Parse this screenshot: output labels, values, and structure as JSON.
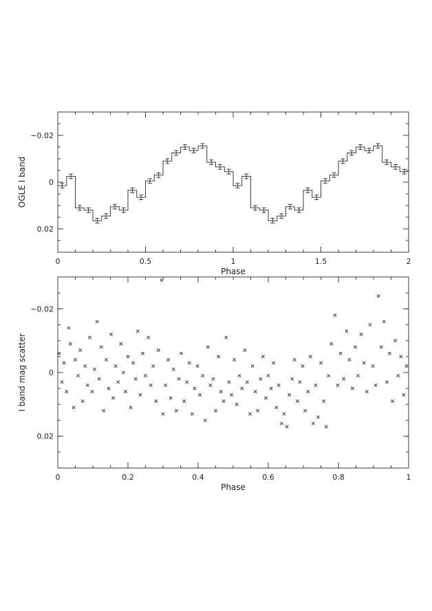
{
  "chart_data": [
    {
      "type": "line",
      "style": "binned step curve with error bars, two cycles",
      "title": "",
      "xlabel": "Phase",
      "ylabel": "OGLE I band",
      "xlim": [
        0,
        2
      ],
      "ylim": [
        0.03,
        -0.03
      ],
      "y_inverted": true,
      "xticks": [
        0,
        0.5,
        1,
        1.5,
        2
      ],
      "xtick_labels": [
        "0",
        "0.5",
        "1",
        "1.5",
        "2"
      ],
      "yticks": [
        -0.02,
        0,
        0.02
      ],
      "ytick_labels": [
        "−0.02",
        "0",
        "0.02"
      ],
      "bin_width": 0.05,
      "bin_start": [
        0,
        0.05,
        0.1,
        0.15,
        0.2,
        0.25,
        0.3,
        0.35,
        0.4,
        0.45,
        0.5,
        0.55,
        0.6,
        0.65,
        0.7,
        0.75,
        0.8,
        0.85,
        0.9,
        0.95
      ],
      "values": [
        0.0015,
        -0.0025,
        0.011,
        0.012,
        0.0165,
        0.0145,
        0.0105,
        0.012,
        0.0035,
        0.0065,
        -0.0005,
        -0.003,
        -0.009,
        -0.0125,
        -0.015,
        -0.0135,
        -0.0155,
        -0.0085,
        -0.0065,
        -0.0045
      ],
      "errors": [
        0.001,
        0.001,
        0.001,
        0.001,
        0.001,
        0.001,
        0.001,
        0.001,
        0.001,
        0.001,
        0.001,
        0.001,
        0.001,
        0.001,
        0.001,
        0.001,
        0.001,
        0.001,
        0.001,
        0.001
      ],
      "cycles": 2,
      "grid": false,
      "legend": "none"
    },
    {
      "type": "scatter",
      "marker": "x",
      "title": "",
      "xlabel": "Phase",
      "ylabel": "I band mag scatter",
      "xlim": [
        0,
        1
      ],
      "ylim": [
        0.03,
        -0.03
      ],
      "y_inverted": true,
      "xticks": [
        0,
        0.2,
        0.4,
        0.6,
        0.8,
        1
      ],
      "xtick_labels": [
        "0",
        "0.2",
        "0.4",
        "0.6",
        "0.8",
        "1"
      ],
      "yticks": [
        -0.02,
        0,
        0.02
      ],
      "ytick_labels": [
        "−0.02",
        "0",
        "0.02"
      ],
      "points": [
        [
          0.004,
          -0.006
        ],
        [
          0.012,
          0.003
        ],
        [
          0.018,
          -0.003
        ],
        [
          0.025,
          0.006
        ],
        [
          0.031,
          -0.014
        ],
        [
          0.036,
          -0.009
        ],
        [
          0.045,
          0.011
        ],
        [
          0.05,
          -0.004
        ],
        [
          0.058,
          0.001
        ],
        [
          0.064,
          -0.007
        ],
        [
          0.071,
          0.009
        ],
        [
          0.078,
          -0.002
        ],
        [
          0.085,
          0.004
        ],
        [
          0.091,
          -0.011
        ],
        [
          0.098,
          0.006
        ],
        [
          0.105,
          -0.001
        ],
        [
          0.112,
          -0.016
        ],
        [
          0.118,
          0.002
        ],
        [
          0.124,
          -0.008
        ],
        [
          0.131,
          0.012
        ],
        [
          0.138,
          -0.004
        ],
        [
          0.145,
          0.005
        ],
        [
          0.152,
          -0.012
        ],
        [
          0.158,
          0.008
        ],
        [
          0.165,
          -0.002
        ],
        [
          0.172,
          0.003
        ],
        [
          0.18,
          -0.009
        ],
        [
          0.187,
          0.0
        ],
        [
          0.193,
          0.006
        ],
        [
          0.2,
          -0.005
        ],
        [
          0.208,
          0.011
        ],
        [
          0.215,
          -0.003
        ],
        [
          0.222,
          0.002
        ],
        [
          0.228,
          -0.013
        ],
        [
          0.235,
          0.007
        ],
        [
          0.242,
          -0.006
        ],
        [
          0.25,
          0.001
        ],
        [
          0.258,
          -0.011
        ],
        [
          0.265,
          0.004
        ],
        [
          0.272,
          -0.002
        ],
        [
          0.28,
          0.009
        ],
        [
          0.287,
          -0.007
        ],
        [
          0.296,
          -0.029
        ],
        [
          0.3,
          0.013
        ],
        [
          0.307,
          0.004
        ],
        [
          0.315,
          -0.004
        ],
        [
          0.322,
          0.008
        ],
        [
          0.33,
          -0.001
        ],
        [
          0.338,
          0.012
        ],
        [
          0.345,
          0.002
        ],
        [
          0.352,
          -0.006
        ],
        [
          0.36,
          0.009
        ],
        [
          0.368,
          0.003
        ],
        [
          0.375,
          -0.003
        ],
        [
          0.383,
          0.013
        ],
        [
          0.39,
          0.005
        ],
        [
          0.398,
          -0.002
        ],
        [
          0.405,
          0.007
        ],
        [
          0.413,
          0.001
        ],
        [
          0.42,
          0.015
        ],
        [
          0.428,
          -0.008
        ],
        [
          0.435,
          0.004
        ],
        [
          0.443,
          0.002
        ],
        [
          0.45,
          0.012
        ],
        [
          0.458,
          -0.005
        ],
        [
          0.465,
          0.006
        ],
        [
          0.473,
          0.009
        ],
        [
          0.48,
          -0.011
        ],
        [
          0.488,
          0.003
        ],
        [
          0.495,
          0.007
        ],
        [
          0.503,
          -0.004
        ],
        [
          0.51,
          0.01
        ],
        [
          0.518,
          0.001
        ],
        [
          0.525,
          0.005
        ],
        [
          0.533,
          -0.007
        ],
        [
          0.54,
          0.003
        ],
        [
          0.548,
          0.013
        ],
        [
          0.555,
          -0.002
        ],
        [
          0.563,
          0.006
        ],
        [
          0.57,
          0.012
        ],
        [
          0.578,
          0.002
        ],
        [
          0.585,
          -0.005
        ],
        [
          0.593,
          0.008
        ],
        [
          0.6,
          0.001
        ],
        [
          0.608,
          0.005
        ],
        [
          0.615,
          -0.003
        ],
        [
          0.623,
          0.011
        ],
        [
          0.63,
          0.004
        ],
        [
          0.638,
          0.016
        ],
        [
          0.645,
          0.013
        ],
        [
          0.653,
          0.017
        ],
        [
          0.66,
          0.007
        ],
        [
          0.668,
          0.002
        ],
        [
          0.675,
          -0.004
        ],
        [
          0.683,
          0.009
        ],
        [
          0.69,
          0.003
        ],
        [
          0.698,
          -0.002
        ],
        [
          0.705,
          0.012
        ],
        [
          0.713,
          0.006
        ],
        [
          0.72,
          -0.005
        ],
        [
          0.728,
          0.016
        ],
        [
          0.735,
          0.004
        ],
        [
          0.742,
          0.014
        ],
        [
          0.75,
          -0.003
        ],
        [
          0.758,
          0.009
        ],
        [
          0.765,
          0.017
        ],
        [
          0.772,
          0.001
        ],
        [
          0.78,
          -0.009
        ],
        [
          0.79,
          -0.018
        ],
        [
          0.798,
          0.004
        ],
        [
          0.806,
          -0.006
        ],
        [
          0.815,
          0.002
        ],
        [
          0.823,
          -0.013
        ],
        [
          0.831,
          -0.004
        ],
        [
          0.84,
          0.005
        ],
        [
          0.848,
          -0.008
        ],
        [
          0.856,
          0.001
        ],
        [
          0.865,
          -0.012
        ],
        [
          0.873,
          -0.003
        ],
        [
          0.881,
          0.006
        ],
        [
          0.89,
          -0.015
        ],
        [
          0.898,
          -0.002
        ],
        [
          0.906,
          0.004
        ],
        [
          0.914,
          -0.024
        ],
        [
          0.922,
          -0.008
        ],
        [
          0.93,
          -0.016
        ],
        [
          0.938,
          0.003
        ],
        [
          0.946,
          -0.006
        ],
        [
          0.954,
          0.009
        ],
        [
          0.962,
          -0.01
        ],
        [
          0.97,
          0.001
        ],
        [
          0.978,
          -0.005
        ],
        [
          0.986,
          0.007
        ],
        [
          0.994,
          -0.002
        ]
      ],
      "grid": false,
      "legend": "none"
    }
  ]
}
